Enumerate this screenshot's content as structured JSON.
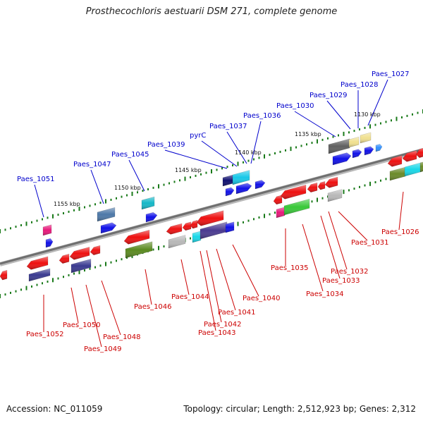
{
  "title": "Prosthecochloris aestuarii DSM 271, complete genome",
  "footer": {
    "accession": "Accession: NC_011059",
    "summary": "Topology: circular; Length: 2,512,923 bp; Genes: 2,312"
  },
  "colors": {
    "forward_label": "#0000cc",
    "reverse_label": "#cc0000",
    "backbone": "#7a7a7a",
    "tick": "#1a7a1a"
  },
  "kbp_ticks": [
    "1130 kbp",
    "1135 kbp",
    "1140 kbp",
    "1145 kbp",
    "1150 kbp",
    "1155 kbp"
  ],
  "forward_labels": [
    "Paes_1027",
    "Paes_1028",
    "Paes_1029",
    "Paes_1030",
    "Paes_1036",
    "Paes_1037",
    "pyrC",
    "Paes_1039",
    "Paes_1045",
    "Paes_1047",
    "Paes_1051"
  ],
  "reverse_labels": [
    "Paes_1026",
    "Paes_1031",
    "Paes_1032",
    "Paes_1033",
    "Paes_1034",
    "Paes_1035",
    "Paes_1040",
    "Paes_1041",
    "Paes_1042",
    "Paes_1043",
    "Paes_1044",
    "Paes_1046",
    "Paes_1048",
    "Paes_1049",
    "Paes_1050",
    "Paes_1052"
  ]
}
